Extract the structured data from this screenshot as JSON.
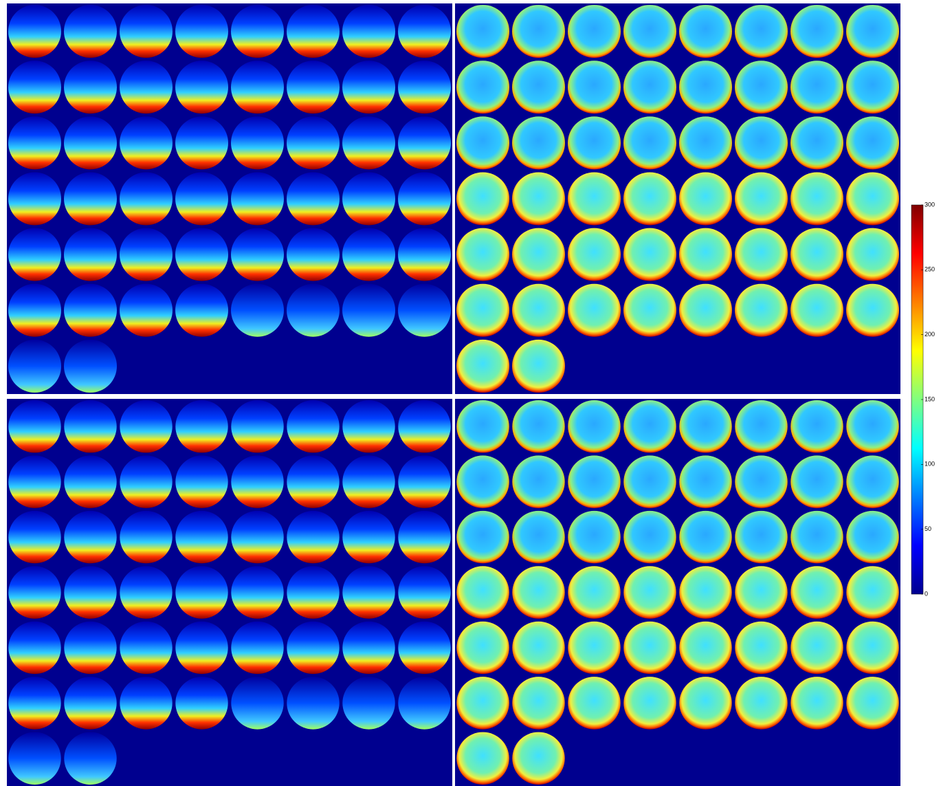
{
  "colorbar": {
    "ylim": [
      0,
      300
    ],
    "yticks": [
      0,
      50,
      100,
      150,
      200,
      250,
      300
    ]
  }
}
